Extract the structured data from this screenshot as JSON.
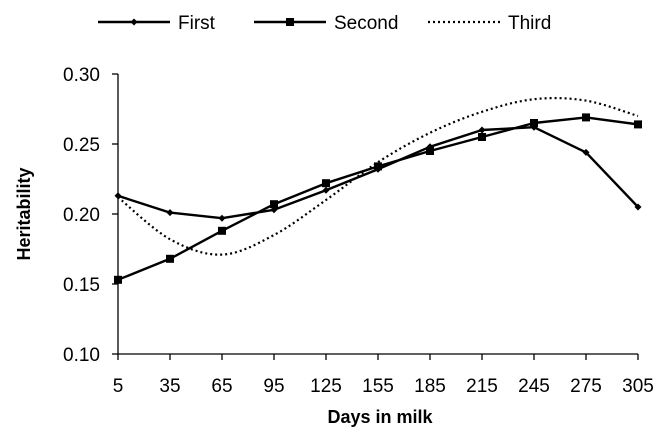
{
  "chart_data": {
    "type": "line",
    "title": "",
    "xlabel": "Days in milk",
    "ylabel": "Heritability",
    "x": [
      5,
      35,
      65,
      95,
      125,
      155,
      185,
      215,
      245,
      275,
      305
    ],
    "x_tick_labels": [
      "5",
      "35",
      "65",
      "95",
      "125",
      "155",
      "185",
      "215",
      "245",
      "275",
      "305"
    ],
    "ylim": [
      0.1,
      0.3
    ],
    "y_ticks": [
      0.1,
      0.15,
      0.2,
      0.25,
      0.3
    ],
    "y_tick_labels": [
      "0.10",
      "0.15",
      "0.20",
      "0.25",
      "0.30"
    ],
    "grid": false,
    "legend_position": "top",
    "series": [
      {
        "name": "First",
        "style": "solid-diamond",
        "color": "#000000",
        "values": [
          0.213,
          0.201,
          0.197,
          0.203,
          0.217,
          0.232,
          0.248,
          0.26,
          0.262,
          0.244,
          0.205
        ]
      },
      {
        "name": "Second",
        "style": "solid-square",
        "color": "#000000",
        "values": [
          0.153,
          0.168,
          0.188,
          0.207,
          0.222,
          0.234,
          0.245,
          0.255,
          0.265,
          0.269,
          0.264
        ]
      },
      {
        "name": "Third",
        "style": "dotted",
        "color": "#000000",
        "values": [
          0.212,
          0.182,
          0.171,
          0.185,
          0.21,
          0.237,
          0.258,
          0.273,
          0.282,
          0.281,
          0.27
        ]
      }
    ]
  }
}
